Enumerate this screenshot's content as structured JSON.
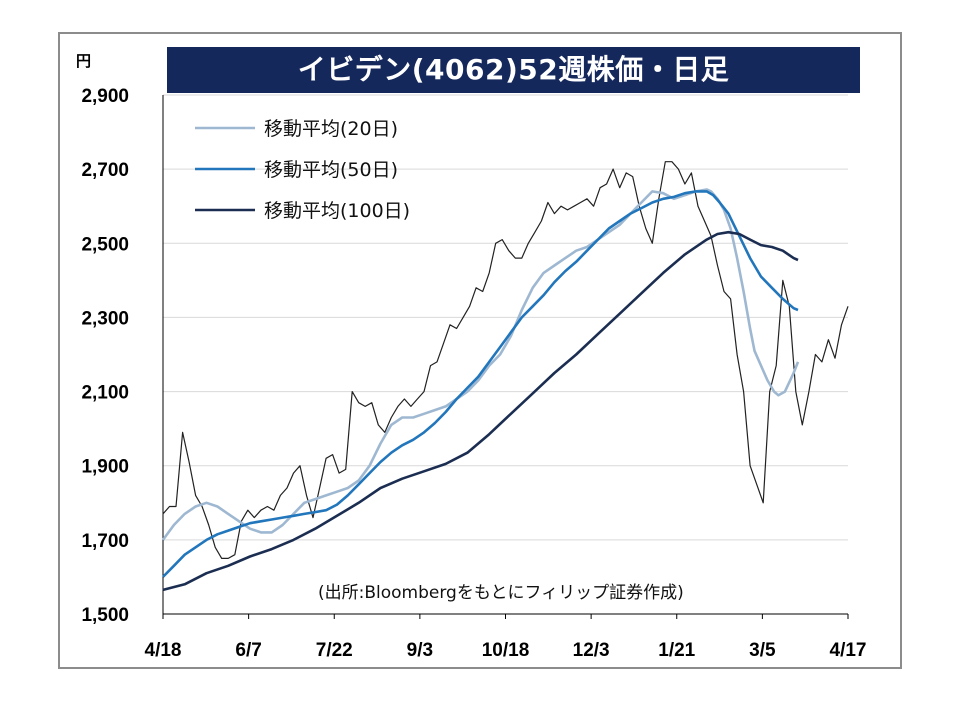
{
  "chart_data": {
    "type": "line",
    "title": "イビデン(4062)52週株価・日足",
    "unit": "円",
    "source": "(出所:Bloombergをもとにフィリップ証券作成)",
    "ylim": [
      1500,
      2900
    ],
    "yticks": [
      "1,500",
      "1,700",
      "1,900",
      "2,100",
      "2,300",
      "2,500",
      "2,700",
      "2,900"
    ],
    "xticks": [
      "4/18",
      "6/7",
      "7/22",
      "9/3",
      "10/18",
      "12/3",
      "1/21",
      "3/5",
      "4/17"
    ],
    "grid": "horizontal",
    "legend_position": "top-left",
    "series": [
      {
        "name": "移動平均(20日)",
        "color": "#9fb8d2",
        "values": [
          [
            0,
            1700
          ],
          [
            5,
            1740
          ],
          [
            10,
            1770
          ],
          [
            15,
            1790
          ],
          [
            20,
            1800
          ],
          [
            25,
            1790
          ],
          [
            30,
            1770
          ],
          [
            35,
            1750
          ],
          [
            40,
            1730
          ],
          [
            45,
            1720
          ],
          [
            50,
            1720
          ],
          [
            55,
            1740
          ],
          [
            60,
            1770
          ],
          [
            65,
            1800
          ],
          [
            70,
            1810
          ],
          [
            75,
            1820
          ],
          [
            80,
            1830
          ],
          [
            85,
            1840
          ],
          [
            90,
            1860
          ],
          [
            95,
            1900
          ],
          [
            100,
            1960
          ],
          [
            105,
            2010
          ],
          [
            110,
            2030
          ],
          [
            115,
            2030
          ],
          [
            120,
            2040
          ],
          [
            125,
            2050
          ],
          [
            130,
            2060
          ],
          [
            135,
            2080
          ],
          [
            140,
            2100
          ],
          [
            145,
            2130
          ],
          [
            150,
            2170
          ],
          [
            155,
            2200
          ],
          [
            160,
            2250
          ],
          [
            165,
            2320
          ],
          [
            170,
            2380
          ],
          [
            175,
            2420
          ],
          [
            180,
            2440
          ],
          [
            185,
            2460
          ],
          [
            190,
            2480
          ],
          [
            195,
            2490
          ],
          [
            200,
            2510
          ],
          [
            205,
            2530
          ],
          [
            210,
            2550
          ],
          [
            215,
            2580
          ],
          [
            220,
            2610
          ],
          [
            225,
            2640
          ],
          [
            230,
            2635
          ],
          [
            235,
            2620
          ],
          [
            240,
            2630
          ],
          [
            245,
            2640
          ],
          [
            250,
            2645
          ],
          [
            252,
            2640
          ],
          [
            255,
            2620
          ],
          [
            258,
            2590
          ],
          [
            261,
            2540
          ],
          [
            264,
            2460
          ],
          [
            267,
            2370
          ],
          [
            270,
            2270
          ],
          [
            272,
            2210
          ],
          [
            275,
            2170
          ],
          [
            278,
            2130
          ],
          [
            281,
            2100
          ],
          [
            283,
            2090
          ],
          [
            286,
            2100
          ],
          [
            290,
            2150
          ],
          [
            292,
            2180
          ]
        ]
      },
      {
        "name": "移動平均(50日)",
        "color": "#2276bb",
        "values": [
          [
            0,
            1600
          ],
          [
            5,
            1630
          ],
          [
            10,
            1660
          ],
          [
            15,
            1680
          ],
          [
            20,
            1700
          ],
          [
            25,
            1715
          ],
          [
            30,
            1725
          ],
          [
            35,
            1735
          ],
          [
            40,
            1745
          ],
          [
            45,
            1750
          ],
          [
            50,
            1755
          ],
          [
            55,
            1760
          ],
          [
            60,
            1765
          ],
          [
            65,
            1770
          ],
          [
            70,
            1775
          ],
          [
            75,
            1780
          ],
          [
            80,
            1795
          ],
          [
            85,
            1820
          ],
          [
            90,
            1850
          ],
          [
            95,
            1880
          ],
          [
            100,
            1910
          ],
          [
            105,
            1935
          ],
          [
            110,
            1955
          ],
          [
            115,
            1970
          ],
          [
            120,
            1990
          ],
          [
            125,
            2015
          ],
          [
            130,
            2045
          ],
          [
            135,
            2080
          ],
          [
            140,
            2110
          ],
          [
            145,
            2140
          ],
          [
            150,
            2180
          ],
          [
            155,
            2220
          ],
          [
            160,
            2260
          ],
          [
            165,
            2300
          ],
          [
            170,
            2330
          ],
          [
            175,
            2360
          ],
          [
            180,
            2395
          ],
          [
            185,
            2425
          ],
          [
            190,
            2450
          ],
          [
            195,
            2480
          ],
          [
            200,
            2510
          ],
          [
            205,
            2540
          ],
          [
            210,
            2560
          ],
          [
            215,
            2580
          ],
          [
            220,
            2595
          ],
          [
            225,
            2610
          ],
          [
            230,
            2620
          ],
          [
            235,
            2625
          ],
          [
            240,
            2635
          ],
          [
            245,
            2640
          ],
          [
            250,
            2640
          ],
          [
            253,
            2630
          ],
          [
            256,
            2610
          ],
          [
            260,
            2580
          ],
          [
            265,
            2520
          ],
          [
            270,
            2460
          ],
          [
            275,
            2410
          ],
          [
            280,
            2380
          ],
          [
            285,
            2350
          ],
          [
            290,
            2325
          ],
          [
            292,
            2320
          ]
        ]
      },
      {
        "name": "移動平均(100日)",
        "color": "#1b2e52",
        "values": [
          [
            0,
            1565
          ],
          [
            10,
            1580
          ],
          [
            20,
            1610
          ],
          [
            30,
            1630
          ],
          [
            40,
            1655
          ],
          [
            50,
            1675
          ],
          [
            60,
            1700
          ],
          [
            70,
            1730
          ],
          [
            80,
            1765
          ],
          [
            90,
            1800
          ],
          [
            100,
            1840
          ],
          [
            110,
            1865
          ],
          [
            120,
            1885
          ],
          [
            130,
            1905
          ],
          [
            140,
            1935
          ],
          [
            150,
            1985
          ],
          [
            160,
            2040
          ],
          [
            170,
            2095
          ],
          [
            180,
            2150
          ],
          [
            190,
            2200
          ],
          [
            200,
            2255
          ],
          [
            210,
            2310
          ],
          [
            220,
            2365
          ],
          [
            230,
            2420
          ],
          [
            240,
            2470
          ],
          [
            250,
            2510
          ],
          [
            255,
            2525
          ],
          [
            260,
            2530
          ],
          [
            265,
            2525
          ],
          [
            270,
            2510
          ],
          [
            275,
            2495
          ],
          [
            280,
            2490
          ],
          [
            285,
            2480
          ],
          [
            290,
            2460
          ],
          [
            292,
            2455
          ]
        ]
      },
      {
        "name": "",
        "color": "#222222",
        "values": [
          [
            0,
            1770
          ],
          [
            3,
            1790
          ],
          [
            6,
            1790
          ],
          [
            9,
            1990
          ],
          [
            12,
            1910
          ],
          [
            15,
            1820
          ],
          [
            18,
            1790
          ],
          [
            21,
            1740
          ],
          [
            24,
            1680
          ],
          [
            27,
            1650
          ],
          [
            30,
            1650
          ],
          [
            33,
            1660
          ],
          [
            36,
            1750
          ],
          [
            39,
            1780
          ],
          [
            42,
            1760
          ],
          [
            45,
            1780
          ],
          [
            48,
            1790
          ],
          [
            51,
            1780
          ],
          [
            54,
            1820
          ],
          [
            57,
            1840
          ],
          [
            60,
            1880
          ],
          [
            63,
            1900
          ],
          [
            66,
            1820
          ],
          [
            69,
            1760
          ],
          [
            72,
            1840
          ],
          [
            75,
            1920
          ],
          [
            78,
            1930
          ],
          [
            81,
            1880
          ],
          [
            84,
            1890
          ],
          [
            87,
            2100
          ],
          [
            90,
            2070
          ],
          [
            93,
            2060
          ],
          [
            96,
            2070
          ],
          [
            99,
            2010
          ],
          [
            102,
            1990
          ],
          [
            105,
            2030
          ],
          [
            108,
            2060
          ],
          [
            111,
            2080
          ],
          [
            114,
            2060
          ],
          [
            117,
            2080
          ],
          [
            120,
            2100
          ],
          [
            123,
            2170
          ],
          [
            126,
            2180
          ],
          [
            129,
            2230
          ],
          [
            132,
            2280
          ],
          [
            135,
            2270
          ],
          [
            138,
            2300
          ],
          [
            141,
            2330
          ],
          [
            144,
            2380
          ],
          [
            147,
            2370
          ],
          [
            150,
            2420
          ],
          [
            153,
            2500
          ],
          [
            156,
            2510
          ],
          [
            159,
            2480
          ],
          [
            162,
            2460
          ],
          [
            165,
            2460
          ],
          [
            168,
            2500
          ],
          [
            171,
            2530
          ],
          [
            174,
            2560
          ],
          [
            177,
            2610
          ],
          [
            180,
            2580
          ],
          [
            183,
            2600
          ],
          [
            186,
            2590
          ],
          [
            189,
            2600
          ],
          [
            192,
            2610
          ],
          [
            195,
            2620
          ],
          [
            198,
            2600
          ],
          [
            201,
            2650
          ],
          [
            204,
            2660
          ],
          [
            207,
            2700
          ],
          [
            210,
            2650
          ],
          [
            213,
            2690
          ],
          [
            216,
            2680
          ],
          [
            219,
            2600
          ],
          [
            222,
            2540
          ],
          [
            225,
            2500
          ],
          [
            228,
            2620
          ],
          [
            231,
            2720
          ],
          [
            234,
            2720
          ],
          [
            237,
            2700
          ],
          [
            240,
            2660
          ],
          [
            243,
            2690
          ],
          [
            246,
            2600
          ],
          [
            249,
            2560
          ],
          [
            252,
            2520
          ],
          [
            255,
            2440
          ],
          [
            258,
            2370
          ],
          [
            261,
            2350
          ],
          [
            264,
            2200
          ],
          [
            267,
            2100
          ],
          [
            270,
            1900
          ],
          [
            273,
            1850
          ],
          [
            276,
            1800
          ],
          [
            279,
            2100
          ],
          [
            282,
            2170
          ],
          [
            285,
            2400
          ],
          [
            288,
            2330
          ],
          [
            291,
            2100
          ],
          [
            294,
            2010
          ],
          [
            297,
            2100
          ],
          [
            300,
            2200
          ],
          [
            303,
            2180
          ],
          [
            306,
            2240
          ],
          [
            309,
            2190
          ],
          [
            312,
            2280
          ],
          [
            315,
            2330
          ]
        ]
      }
    ]
  }
}
